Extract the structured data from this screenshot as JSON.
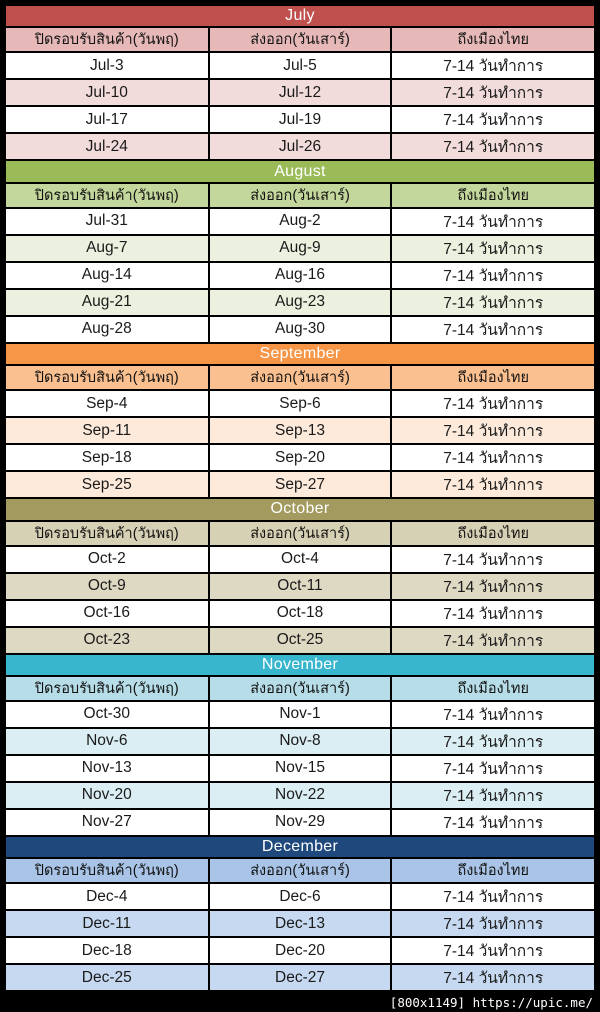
{
  "page": {
    "background": "#000000",
    "watermark": "[800x1149] https://upic.me/"
  },
  "table": {
    "column_headers": [
      "ปิดรอบรับสินค้า(วันพฤ)",
      "ส่งออก(วันเสาร์)",
      "ถึงเมืองไทย"
    ],
    "arrival_text": "7-14 วันทำการ",
    "month_header_text_color": "#ffffff",
    "row_base_color": "#ffffff",
    "months": [
      {
        "name": "July",
        "header_color": "#c0504d",
        "subheader_color": "#e6b9b8",
        "alt_row_color": "#f2dcdb",
        "rows": [
          [
            "Jul-3",
            "Jul-5"
          ],
          [
            "Jul-10",
            "Jul-12"
          ],
          [
            "Jul-17",
            "Jul-19"
          ],
          [
            "Jul-24",
            "Jul-26"
          ]
        ]
      },
      {
        "name": "August",
        "header_color": "#9bbb59",
        "subheader_color": "#c3d69b",
        "alt_row_color": "#ebf1de",
        "rows": [
          [
            "Jul-31",
            "Aug-2"
          ],
          [
            "Aug-7",
            "Aug-9"
          ],
          [
            "Aug-14",
            "Aug-16"
          ],
          [
            "Aug-21",
            "Aug-23"
          ],
          [
            "Aug-28",
            "Aug-30"
          ]
        ]
      },
      {
        "name": "September",
        "header_color": "#f79646",
        "subheader_color": "#fac08f",
        "alt_row_color": "#fdeada",
        "rows": [
          [
            "Sep-4",
            "Sep-6"
          ],
          [
            "Sep-11",
            "Sep-13"
          ],
          [
            "Sep-18",
            "Sep-20"
          ],
          [
            "Sep-25",
            "Sep-27"
          ]
        ]
      },
      {
        "name": "October",
        "header_color": "#a29a5e",
        "subheader_color": "#d6d0b4",
        "alt_row_color": "#ddd9c3",
        "rows": [
          [
            "Oct-2",
            "Oct-4"
          ],
          [
            "Oct-9",
            "Oct-11"
          ],
          [
            "Oct-16",
            "Oct-18"
          ],
          [
            "Oct-23",
            "Oct-25"
          ]
        ]
      },
      {
        "name": "November",
        "header_color": "#38b6cd",
        "subheader_color": "#b7dde8",
        "alt_row_color": "#daeef3",
        "rows": [
          [
            "Oct-30",
            "Nov-1"
          ],
          [
            "Nov-6",
            "Nov-8"
          ],
          [
            "Nov-13",
            "Nov-15"
          ],
          [
            "Nov-20",
            "Nov-22"
          ],
          [
            "Nov-27",
            "Nov-29"
          ]
        ]
      },
      {
        "name": "December",
        "header_color": "#1f497d",
        "subheader_color": "#a9c4e6",
        "alt_row_color": "#c6d9f1",
        "rows": [
          [
            "Dec-4",
            "Dec-6"
          ],
          [
            "Dec-11",
            "Dec-13"
          ],
          [
            "Dec-18",
            "Dec-20"
          ],
          [
            "Dec-25",
            "Dec-27"
          ]
        ]
      }
    ]
  }
}
